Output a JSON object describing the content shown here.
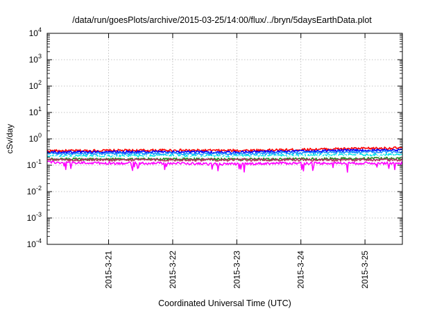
{
  "chart_data": {
    "type": "line",
    "title": "/data/run/goesPlots/archive/2015-03-25/14:00/flux/../bryn/5daysEarthData.plot",
    "xlabel": "Coordinated Universal Time (UTC)",
    "ylabel": "cSv/day",
    "yscale": "log",
    "ylim": [
      0.0001,
      10000
    ],
    "yticks": [
      {
        "base": "10",
        "exp": "4"
      },
      {
        "base": "10",
        "exp": "3"
      },
      {
        "base": "10",
        "exp": "2"
      },
      {
        "base": "10",
        "exp": "1"
      },
      {
        "base": "10",
        "exp": "0"
      },
      {
        "base": "10",
        "exp": "-1"
      },
      {
        "base": "10",
        "exp": "-2"
      },
      {
        "base": "10",
        "exp": "-3"
      },
      {
        "base": "10",
        "exp": "-4"
      }
    ],
    "xlim": [
      "2015-03-20T01:00",
      "2015-03-25T14:00"
    ],
    "xticks": [
      "2015-3-21",
      "2015-3-22",
      "2015-3-23",
      "2015-3-24",
      "2015-3-25"
    ],
    "grid": true,
    "series": [
      {
        "color": "#ff0000",
        "values": [
          0.35,
          0.36,
          0.37,
          0.36,
          0.38,
          0.42,
          0.45
        ]
      },
      {
        "color": "#0000ff",
        "values": [
          0.31,
          0.32,
          0.32,
          0.31,
          0.33,
          0.36,
          0.38
        ]
      },
      {
        "color": "#1e90ff",
        "values": [
          0.27,
          0.28,
          0.28,
          0.27,
          0.29,
          0.31,
          0.32
        ]
      },
      {
        "color": "#00e5e5",
        "values": [
          0.22,
          0.22,
          0.23,
          0.22,
          0.23,
          0.24,
          0.25
        ]
      },
      {
        "color": "#ffffff",
        "values": [
          0.2,
          0.2,
          0.21,
          0.2,
          0.21,
          0.22,
          0.22
        ]
      },
      {
        "color": "#228b22",
        "values": [
          0.17,
          0.17,
          0.17,
          0.17,
          0.17,
          0.18,
          0.18
        ]
      },
      {
        "color": "#b03060",
        "values": [
          0.16,
          0.16,
          0.16,
          0.16,
          0.16,
          0.16,
          0.16
        ]
      },
      {
        "color": "#ff00ff",
        "values": [
          0.13,
          0.12,
          0.12,
          0.11,
          0.12,
          0.12,
          0.12
        ]
      }
    ]
  }
}
